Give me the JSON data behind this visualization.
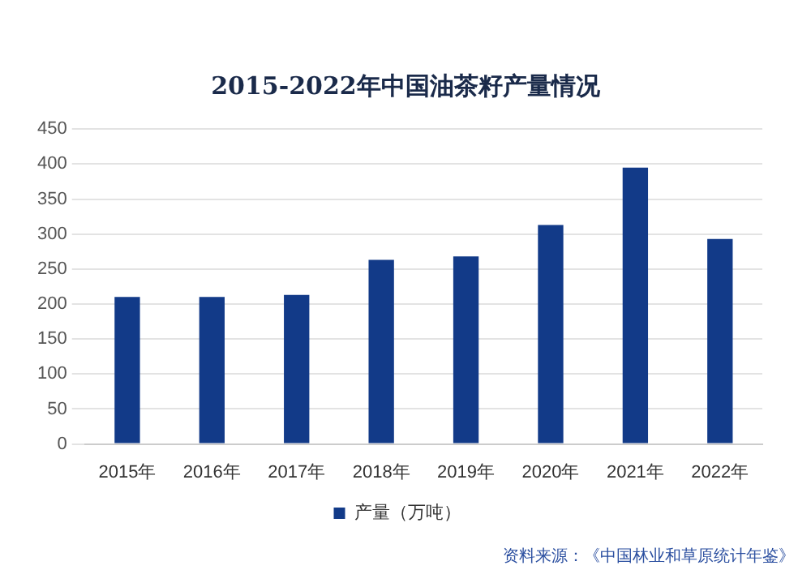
{
  "chart_data": {
    "type": "bar",
    "title": "2015-2022年中国油茶籽产量情况",
    "categories": [
      "2015年",
      "2016年",
      "2017年",
      "2018年",
      "2019年",
      "2020年",
      "2021年",
      "2022年"
    ],
    "series": [
      {
        "name": "产量（万吨）",
        "color": "#123a88",
        "values": [
          210,
          210,
          213,
          263,
          268,
          313,
          395,
          293
        ]
      }
    ],
    "ylim": [
      0,
      450
    ],
    "yticks": [
      0,
      50,
      100,
      150,
      200,
      250,
      300,
      350,
      400,
      450
    ],
    "grid": "y",
    "legend": "bottom",
    "annotations": [
      "资料来源：《中国林业和草原统计年鉴》"
    ]
  }
}
